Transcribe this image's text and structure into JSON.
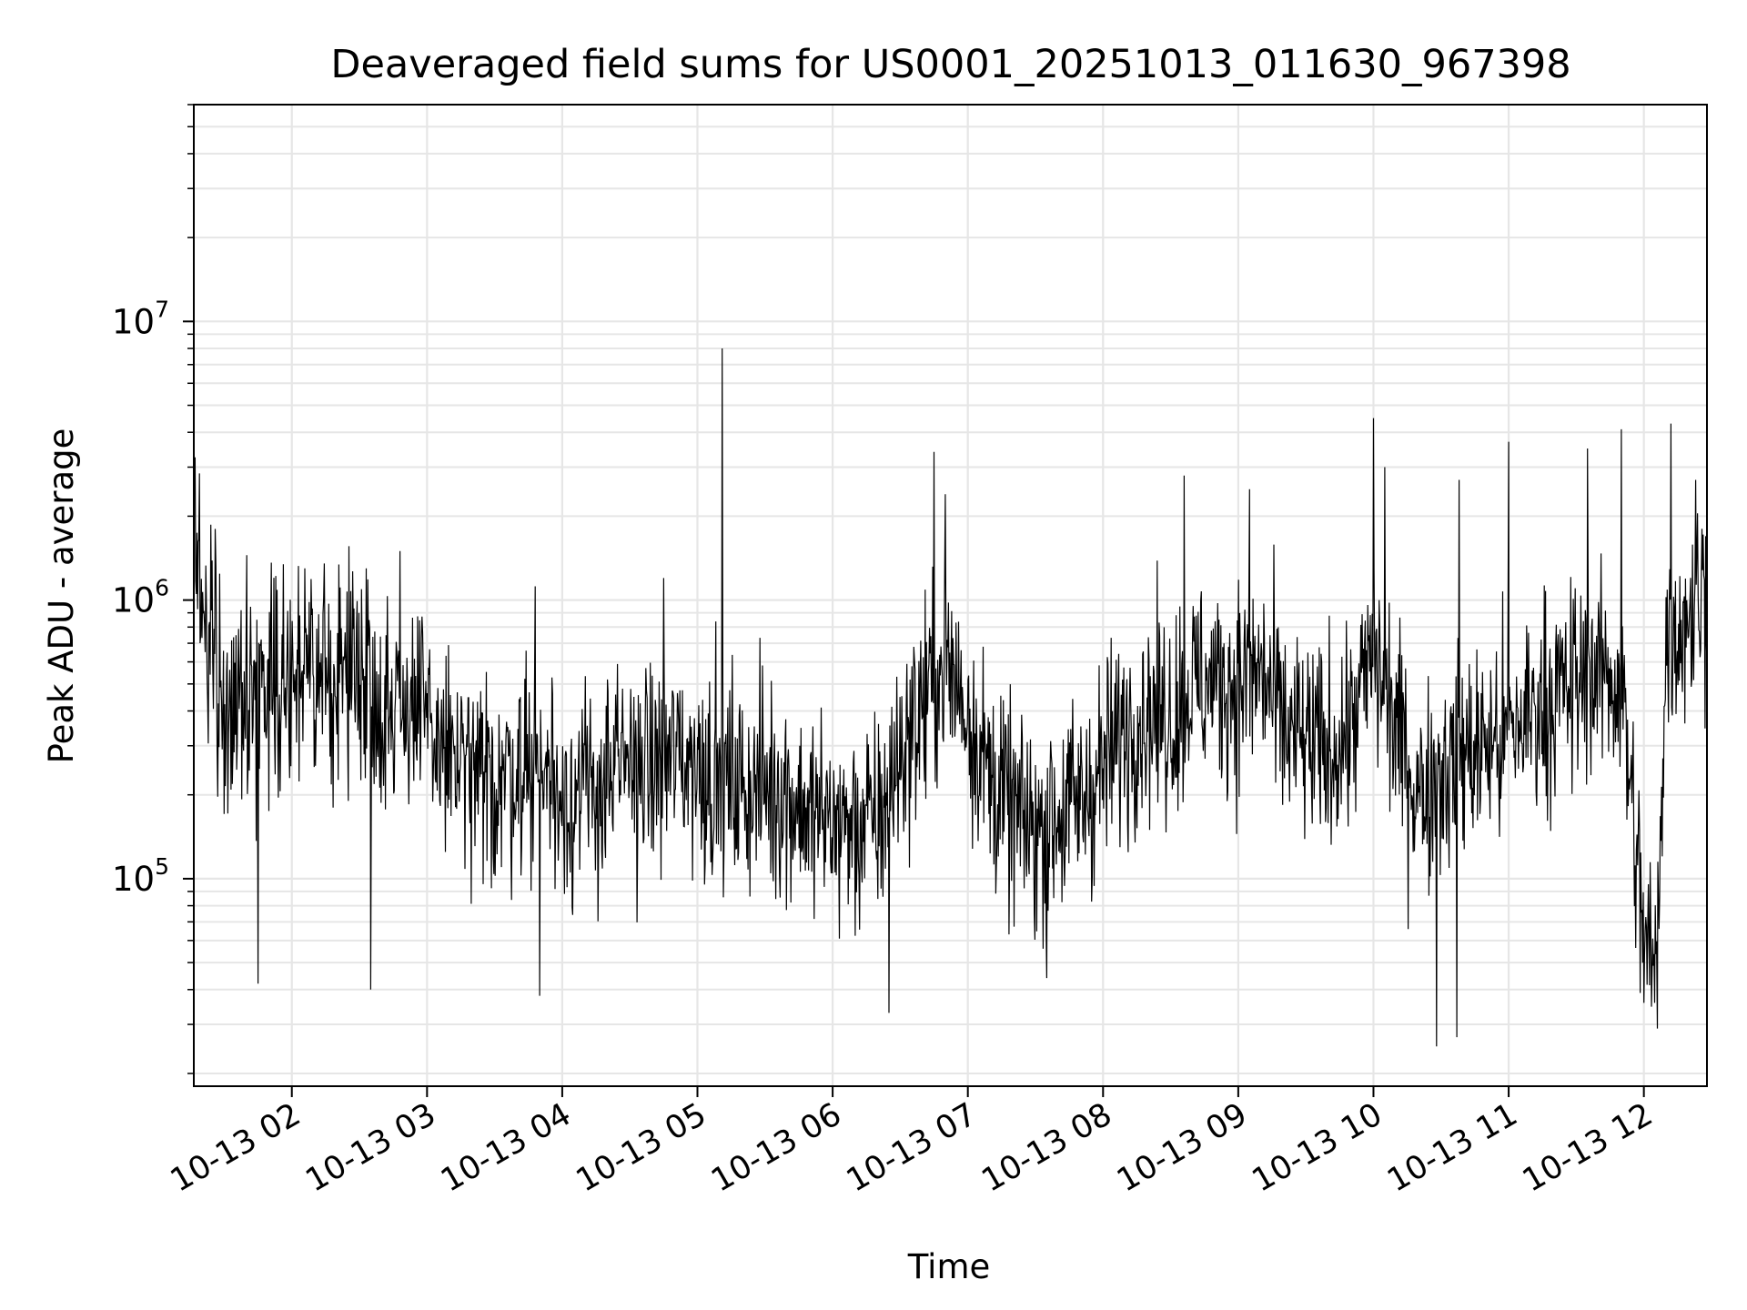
{
  "chart_data": {
    "type": "line",
    "title": "Deaveraged field sums for US0001_20251013_011630_967398",
    "xlabel": "Time",
    "ylabel": "Peak ADU - average",
    "yscale": "log",
    "ylim": [
      18000,
      60000000
    ],
    "xlim": [
      "2025-10-13T01:16:30",
      "2025-10-13T12:28:00"
    ],
    "xticks": [
      {
        "t": "2025-10-13T02:00",
        "label": "10-13 02"
      },
      {
        "t": "2025-10-13T03:00",
        "label": "10-13 03"
      },
      {
        "t": "2025-10-13T04:00",
        "label": "10-13 04"
      },
      {
        "t": "2025-10-13T05:00",
        "label": "10-13 05"
      },
      {
        "t": "2025-10-13T06:00",
        "label": "10-13 06"
      },
      {
        "t": "2025-10-13T07:00",
        "label": "10-13 07"
      },
      {
        "t": "2025-10-13T08:00",
        "label": "10-13 08"
      },
      {
        "t": "2025-10-13T09:00",
        "label": "10-13 09"
      },
      {
        "t": "2025-10-13T10:00",
        "label": "10-13 10"
      },
      {
        "t": "2025-10-13T11:00",
        "label": "10-13 11"
      },
      {
        "t": "2025-10-13T12:00",
        "label": "10-13 12"
      }
    ],
    "yticks": [
      {
        "value": 100000,
        "base": "10",
        "exp": "5"
      },
      {
        "value": 1000000,
        "base": "10",
        "exp": "6"
      },
      {
        "value": 10000000,
        "base": "10",
        "exp": "7"
      }
    ],
    "grid": true,
    "line_color": "#000000",
    "series": [
      {
        "x": [
          "2025-10-13T01:16:30",
          "2025-10-13T01:20",
          "2025-10-13T01:25",
          "2025-10-13T01:30",
          "2025-10-13T01:35",
          "2025-10-13T01:40",
          "2025-10-13T01:45",
          "2025-10-13T01:50",
          "2025-10-13T01:55",
          "2025-10-13T02:00",
          "2025-10-13T02:10",
          "2025-10-13T02:20",
          "2025-10-13T02:30",
          "2025-10-13T02:40",
          "2025-10-13T02:50",
          "2025-10-13T03:00",
          "2025-10-13T03:10",
          "2025-10-13T03:20",
          "2025-10-13T03:30",
          "2025-10-13T03:40",
          "2025-10-13T03:50",
          "2025-10-13T04:00",
          "2025-10-13T04:10",
          "2025-10-13T04:20",
          "2025-10-13T04:30",
          "2025-10-13T04:40",
          "2025-10-13T04:50",
          "2025-10-13T05:00",
          "2025-10-13T05:10",
          "2025-10-13T05:20",
          "2025-10-13T05:30",
          "2025-10-13T05:40",
          "2025-10-13T05:50",
          "2025-10-13T06:00",
          "2025-10-13T06:10",
          "2025-10-13T06:20",
          "2025-10-13T06:30",
          "2025-10-13T06:40",
          "2025-10-13T06:50",
          "2025-10-13T07:00",
          "2025-10-13T07:10",
          "2025-10-13T07:20",
          "2025-10-13T07:30",
          "2025-10-13T07:40",
          "2025-10-13T07:50",
          "2025-10-13T08:00",
          "2025-10-13T08:10",
          "2025-10-13T08:20",
          "2025-10-13T08:30",
          "2025-10-13T08:40",
          "2025-10-13T08:50",
          "2025-10-13T09:00",
          "2025-10-13T09:10",
          "2025-10-13T09:20",
          "2025-10-13T09:30",
          "2025-10-13T09:40",
          "2025-10-13T09:50",
          "2025-10-13T10:00",
          "2025-10-13T10:10",
          "2025-10-13T10:20",
          "2025-10-13T10:30",
          "2025-10-13T10:40",
          "2025-10-13T10:50",
          "2025-10-13T11:00",
          "2025-10-13T11:10",
          "2025-10-13T11:20",
          "2025-10-13T11:30",
          "2025-10-13T11:40",
          "2025-10-13T11:50",
          "2025-10-13T12:00",
          "2025-10-13T12:05",
          "2025-10-13T12:10",
          "2025-10-13T12:15",
          "2025-10-13T12:20",
          "2025-10-13T12:28"
        ],
        "y": [
          1600000,
          900000,
          800000,
          350000,
          500000,
          400000,
          450000,
          600000,
          500000,
          550000,
          500000,
          550000,
          600000,
          400000,
          450000,
          350000,
          280000,
          220000,
          220000,
          250000,
          260000,
          200000,
          200000,
          220000,
          260000,
          250000,
          280000,
          260000,
          230000,
          210000,
          220000,
          200000,
          170000,
          160000,
          150000,
          160000,
          280000,
          420000,
          600000,
          400000,
          230000,
          170000,
          150000,
          170000,
          190000,
          250000,
          350000,
          400000,
          380000,
          500000,
          500000,
          500000,
          550000,
          350000,
          300000,
          280000,
          350000,
          650000,
          350000,
          200000,
          250000,
          280000,
          300000,
          320000,
          400000,
          450000,
          500000,
          550000,
          500000,
          60000,
          45000,
          700000,
          800000,
          900000,
          1100000
        ]
      }
    ],
    "noise_amplitude_decades": 0.45,
    "spikes": [
      {
        "t": "2025-10-13T01:16:45",
        "value": 2900000
      },
      {
        "t": "2025-10-13T01:26",
        "value": 1800000
      },
      {
        "t": "2025-10-13T01:40",
        "value": 1450000
      },
      {
        "t": "2025-10-13T02:33",
        "value": 1300000
      },
      {
        "t": "2025-10-13T02:48",
        "value": 1500000
      },
      {
        "t": "2025-10-13T03:48",
        "value": 1120000
      },
      {
        "t": "2025-10-13T04:45",
        "value": 1200000
      },
      {
        "t": "2025-10-13T05:11",
        "value": 8000000
      },
      {
        "t": "2025-10-13T06:45",
        "value": 3400000
      },
      {
        "t": "2025-10-13T06:50",
        "value": 2400000
      },
      {
        "t": "2025-10-13T08:36",
        "value": 2800000
      },
      {
        "t": "2025-10-13T09:05",
        "value": 2500000
      },
      {
        "t": "2025-10-13T10:00",
        "value": 4500000
      },
      {
        "t": "2025-10-13T10:05",
        "value": 3000000
      },
      {
        "t": "2025-10-13T10:38",
        "value": 2700000
      },
      {
        "t": "2025-10-13T11:00",
        "value": 3700000
      },
      {
        "t": "2025-10-13T11:35",
        "value": 3500000
      },
      {
        "t": "2025-10-13T11:50",
        "value": 4100000
      },
      {
        "t": "2025-10-13T12:12",
        "value": 4300000
      },
      {
        "t": "2025-10-13T12:23",
        "value": 2700000
      },
      {
        "t": "2025-10-13T10:28",
        "value": 25000
      },
      {
        "t": "2025-10-13T10:37",
        "value": 27000
      },
      {
        "t": "2025-10-13T12:06",
        "value": 29000
      },
      {
        "t": "2025-10-13T06:25",
        "value": 33000
      },
      {
        "t": "2025-10-13T03:50",
        "value": 38000
      },
      {
        "t": "2025-10-13T02:35",
        "value": 40000
      },
      {
        "t": "2025-10-13T07:35",
        "value": 44000
      },
      {
        "t": "2025-10-13T01:45",
        "value": 42000
      }
    ]
  }
}
